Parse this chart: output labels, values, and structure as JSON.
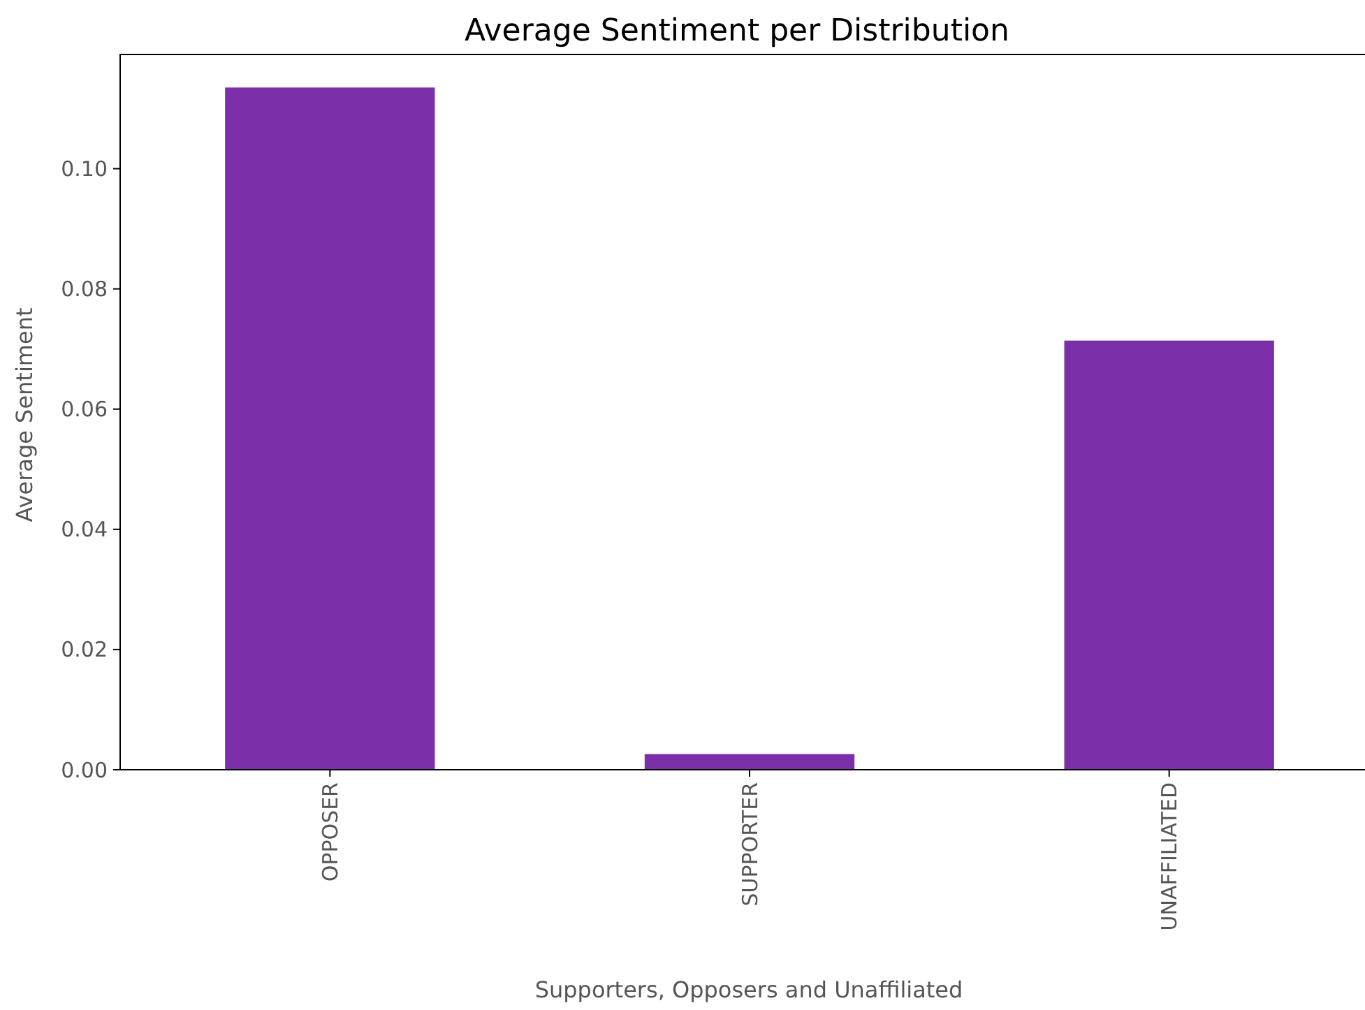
{
  "chart_data": {
    "type": "bar",
    "title": "Average Sentiment per Distribution",
    "xlabel": "Supporters, Opposers and Unaffiliated",
    "ylabel": "Average Sentiment",
    "categories": [
      "OPPOSER",
      "SUPPORTER",
      "UNAFFILIATED"
    ],
    "values": [
      0.1135,
      0.0026,
      0.0714
    ],
    "color": "#7b2fa8",
    "ylim": [
      0,
      0.119
    ],
    "yticks": [
      {
        "value": 0,
        "label": "0.00"
      },
      {
        "value": 0.02,
        "label": "0.02"
      },
      {
        "value": 0.04,
        "label": "0.04"
      },
      {
        "value": 0.06,
        "label": "0.06"
      },
      {
        "value": 0.08,
        "label": "0.08"
      },
      {
        "value": 0.1,
        "label": "0.10"
      }
    ],
    "grid": false
  }
}
